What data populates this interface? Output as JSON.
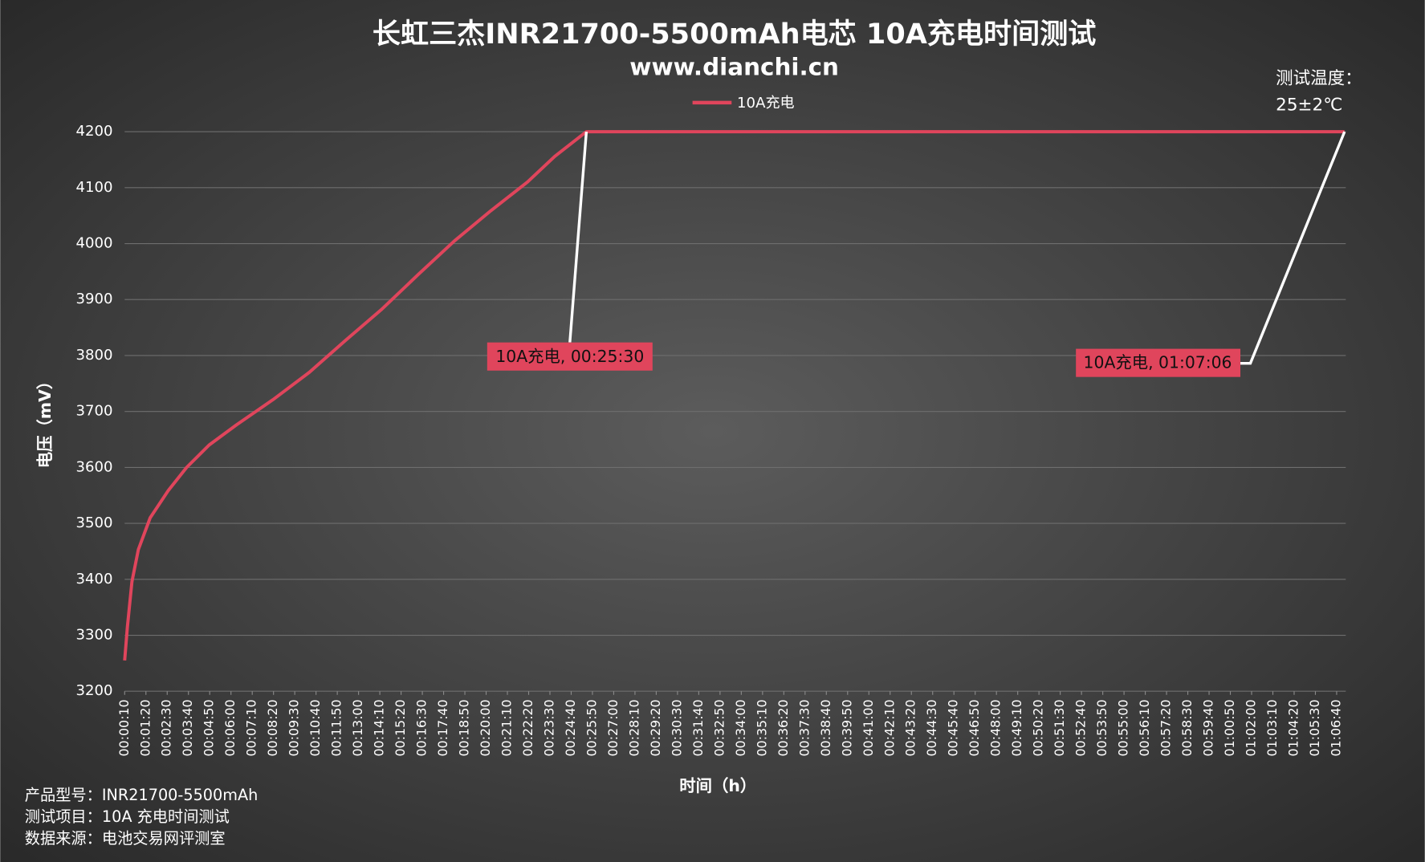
{
  "chart_data": {
    "type": "line",
    "title": "长虹三杰INR21700-5500mAh电芯 10A充电时间测试",
    "subtitle": "www.dianchi.cn",
    "note_lines": [
      "测试温度：",
      "25±2℃"
    ],
    "x_label": "时间（h）",
    "y_label": "电压（mV）",
    "footer_lines": [
      "产品型号：INR21700-5500mAh",
      "测试项目：10A 充电时间测试",
      "数据来源：电池交易网评测室"
    ],
    "legend": "top",
    "grid": true,
    "ylim": [
      3200,
      4200
    ],
    "yticks": [
      3200,
      3300,
      3400,
      3500,
      3600,
      3700,
      3800,
      3900,
      4000,
      4100,
      4200
    ],
    "xlim": [
      10,
      4030
    ],
    "xticks": [
      {
        "value": 10,
        "label": "00:00:10"
      },
      {
        "value": 80,
        "label": "00:01:20"
      },
      {
        "value": 150,
        "label": "00:02:30"
      },
      {
        "value": 220,
        "label": "00:03:40"
      },
      {
        "value": 290,
        "label": "00:04:50"
      },
      {
        "value": 360,
        "label": "00:06:00"
      },
      {
        "value": 430,
        "label": "00:07:10"
      },
      {
        "value": 500,
        "label": "00:08:20"
      },
      {
        "value": 570,
        "label": "00:09:30"
      },
      {
        "value": 640,
        "label": "00:10:40"
      },
      {
        "value": 710,
        "label": "00:11:50"
      },
      {
        "value": 780,
        "label": "00:13:00"
      },
      {
        "value": 850,
        "label": "00:14:10"
      },
      {
        "value": 920,
        "label": "00:15:20"
      },
      {
        "value": 990,
        "label": "00:16:30"
      },
      {
        "value": 1060,
        "label": "00:17:40"
      },
      {
        "value": 1130,
        "label": "00:18:50"
      },
      {
        "value": 1200,
        "label": "00:20:00"
      },
      {
        "value": 1270,
        "label": "00:21:10"
      },
      {
        "value": 1340,
        "label": "00:22:20"
      },
      {
        "value": 1410,
        "label": "00:23:30"
      },
      {
        "value": 1480,
        "label": "00:24:40"
      },
      {
        "value": 1550,
        "label": "00:25:50"
      },
      {
        "value": 1620,
        "label": "00:27:00"
      },
      {
        "value": 1690,
        "label": "00:28:10"
      },
      {
        "value": 1760,
        "label": "00:29:20"
      },
      {
        "value": 1830,
        "label": "00:30:30"
      },
      {
        "value": 1900,
        "label": "00:31:40"
      },
      {
        "value": 1970,
        "label": "00:32:50"
      },
      {
        "value": 2040,
        "label": "00:34:00"
      },
      {
        "value": 2110,
        "label": "00:35:10"
      },
      {
        "value": 2180,
        "label": "00:36:20"
      },
      {
        "value": 2250,
        "label": "00:37:30"
      },
      {
        "value": 2320,
        "label": "00:38:40"
      },
      {
        "value": 2390,
        "label": "00:39:50"
      },
      {
        "value": 2460,
        "label": "00:41:00"
      },
      {
        "value": 2530,
        "label": "00:42:10"
      },
      {
        "value": 2600,
        "label": "00:43:20"
      },
      {
        "value": 2670,
        "label": "00:44:30"
      },
      {
        "value": 2740,
        "label": "00:45:40"
      },
      {
        "value": 2810,
        "label": "00:46:50"
      },
      {
        "value": 2880,
        "label": "00:48:00"
      },
      {
        "value": 2950,
        "label": "00:49:10"
      },
      {
        "value": 3020,
        "label": "00:50:20"
      },
      {
        "value": 3090,
        "label": "00:51:30"
      },
      {
        "value": 3160,
        "label": "00:52:40"
      },
      {
        "value": 3230,
        "label": "00:53:50"
      },
      {
        "value": 3300,
        "label": "00:55:00"
      },
      {
        "value": 3370,
        "label": "00:56:10"
      },
      {
        "value": 3440,
        "label": "00:57:20"
      },
      {
        "value": 3510,
        "label": "00:58:30"
      },
      {
        "value": 3580,
        "label": "00:59:40"
      },
      {
        "value": 3650,
        "label": "01:00:50"
      },
      {
        "value": 3720,
        "label": "01:02:00"
      },
      {
        "value": 3790,
        "label": "01:03:10"
      },
      {
        "value": 3860,
        "label": "01:04:20"
      },
      {
        "value": 3930,
        "label": "01:05:30"
      },
      {
        "value": 4000,
        "label": "01:06:40"
      }
    ],
    "series": [
      {
        "name": "10A充电",
        "color": "#e0455c",
        "x": [
          10,
          19,
          34,
          55,
          94,
          154,
          214,
          288,
          378,
          498,
          618,
          737,
          857,
          977,
          1096,
          1216,
          1336,
          1426,
          1530,
          4026
        ],
        "values": [
          3255,
          3315,
          3396,
          3453,
          3510,
          3559,
          3600,
          3640,
          3676,
          3721,
          3770,
          3827,
          3883,
          3945,
          4005,
          4059,
          4110,
          4156,
          4200,
          4200
        ]
      }
    ],
    "annotations": [
      {
        "text": "10A充电, 00:25:30"
      },
      {
        "text": "10A充电, 01:07:06"
      }
    ]
  }
}
